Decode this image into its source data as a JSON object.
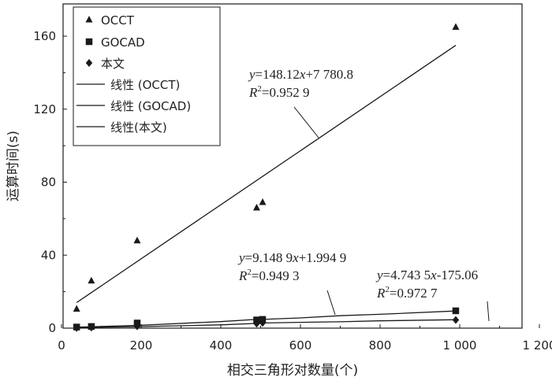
{
  "chart_data": {
    "type": "scatter",
    "xlabel": "相交三角形对数量(个)",
    "ylabel": "运算时间(s)",
    "xlim": [
      0,
      1200
    ],
    "ylim": [
      0,
      180
    ],
    "x_ticks": [
      0,
      200,
      400,
      600,
      800,
      1000,
      1200
    ],
    "x_tick_labels": [
      "0",
      "200",
      "400",
      "600",
      "800",
      "1 000",
      "1 200"
    ],
    "y_ticks": [
      0,
      40,
      80,
      120,
      160
    ],
    "y_tick_labels": [
      "0",
      "40",
      "80",
      "120",
      "160"
    ],
    "legend_position": "top-left",
    "series": [
      {
        "name": "OCCT",
        "marker": "triangle",
        "color": "#1a1a1a",
        "points": [
          [
            38,
            10.5
          ],
          [
            75,
            26
          ],
          [
            190,
            48
          ],
          [
            490,
            66
          ],
          [
            505,
            69
          ],
          [
            990,
            165
          ]
        ]
      },
      {
        "name": "GOCAD",
        "marker": "square",
        "color": "#1a1a1a",
        "points": [
          [
            38,
            0.6
          ],
          [
            75,
            0.9
          ],
          [
            190,
            2.8
          ],
          [
            490,
            4.5
          ],
          [
            505,
            4.8
          ],
          [
            990,
            9.5
          ]
        ]
      },
      {
        "name": "本文",
        "marker": "diamond",
        "color": "#1a1a1a",
        "points": [
          [
            38,
            0.1
          ],
          [
            75,
            0.3
          ],
          [
            190,
            1.0
          ],
          [
            490,
            2.5
          ],
          [
            505,
            2.9
          ],
          [
            990,
            4.5
          ]
        ]
      }
    ],
    "fit_lines": [
      {
        "name": "线性 (OCCT)",
        "points": [
          [
            38,
            14
          ],
          [
            990,
            155
          ]
        ],
        "equation_y": "y",
        "equation_rest": "=148.12",
        "equation_x": "x",
        "equation_tail": "+7 780.8",
        "r2_label": "R",
        "r2_value": "=0.952 9"
      },
      {
        "name": "线性 (GOCAD)",
        "points": [
          [
            38,
            0.5
          ],
          [
            190,
            1.5
          ],
          [
            400,
            3.6
          ],
          [
            490,
            4.8
          ],
          [
            505,
            4.8
          ],
          [
            600,
            5.6
          ],
          [
            700,
            6.8
          ],
          [
            800,
            7.6
          ],
          [
            990,
            9.4
          ]
        ],
        "equation_y": "y",
        "equation_rest": "=9.148 9",
        "equation_x": "x",
        "equation_tail": "+1.994 9",
        "r2_label": "R",
        "r2_value": "=0.949 3"
      },
      {
        "name": "线性(本文)",
        "points": [
          [
            38,
            0.3
          ],
          [
            190,
            0.8
          ],
          [
            400,
            1.8
          ],
          [
            490,
            2.6
          ],
          [
            505,
            2.8
          ],
          [
            600,
            3.2
          ],
          [
            700,
            3.5
          ],
          [
            800,
            4.0
          ],
          [
            990,
            4.6
          ]
        ],
        "equation_y": "y",
        "equation_rest": "=4.743 5",
        "equation_x": "x",
        "equation_tail": "-175.06",
        "r2_label": "R",
        "r2_value": "=0.972 7"
      }
    ]
  }
}
